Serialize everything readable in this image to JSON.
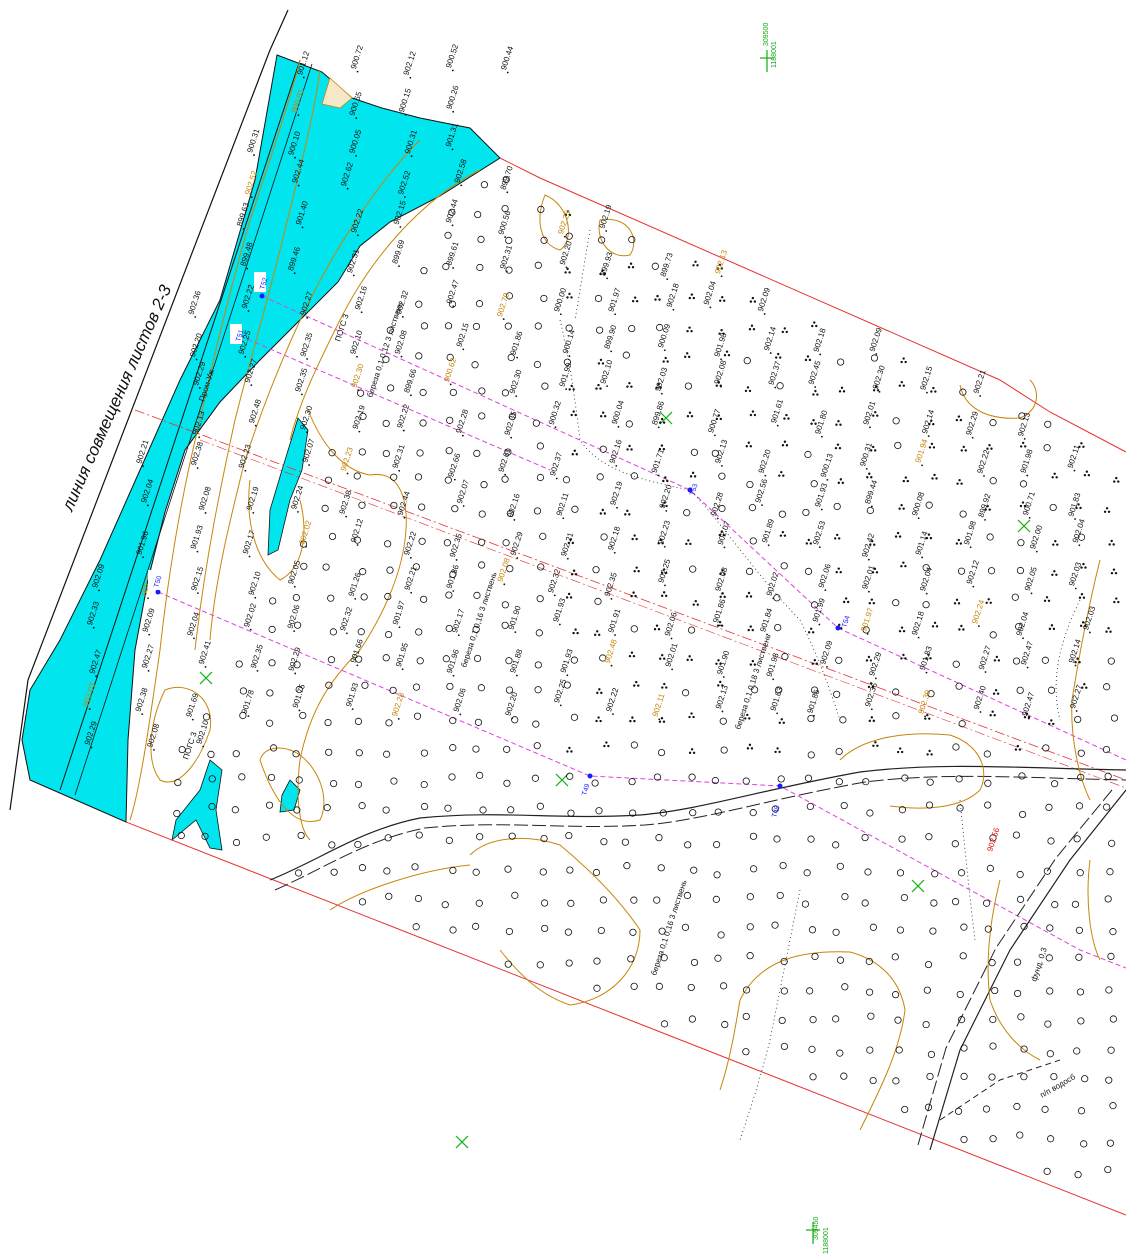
{
  "sheet_label": "линия совмещения листов 2-3",
  "grid_marks": [
    {
      "label": "1188001",
      "sub": "309500"
    },
    {
      "label": "1188001",
      "sub": "309450"
    }
  ],
  "stations": [
    "T52",
    "T51",
    "T50",
    "T53",
    "T54",
    "T49",
    "T48"
  ],
  "stream_label": "Пром-Уж",
  "red_label": "902.56",
  "road_notes": [
    "фунд. 0,3",
    "п/п водосб"
  ],
  "vegetation_notes": [
    "береза 0,1 0,12 3 листвень",
    "береза 0,1 0,16 3 листвень",
    "береза 0,1 0,18 3 листвень"
  ],
  "bench_note": "ПОГС 3",
  "colors": {
    "water": "#00e5ee",
    "boundary": "#e83030",
    "contour": "#c8860a",
    "profile": "#e040e0",
    "grid": "#10b010",
    "station": "#1a1aff",
    "road": "#222222"
  },
  "elevations": [
    "901.12",
    "900.72",
    "902.12",
    "900.52",
    "900.44",
    "900.91",
    "900.65",
    "900.15",
    "900.26",
    "900.31",
    "900.10",
    "900.05",
    "900.31",
    "901.31",
    "902.52",
    "902.44",
    "902.62",
    "902.52",
    "902.58",
    "899.70",
    "899.63",
    "901.40",
    "902.22",
    "902.15",
    "902.44",
    "900.56",
    "902.25",
    "902.19",
    "899.48",
    "899.46",
    "902.31",
    "899.69",
    "899.61",
    "902.31",
    "902.20",
    "899.93",
    "899.73",
    "902.13",
    "902.36",
    "902.22",
    "902.27",
    "902.16",
    "902.32",
    "902.47",
    "902.70",
    "900.00",
    "901.97",
    "902.18",
    "902.04",
    "902.09",
    "902.20",
    "902.25",
    "902.35",
    "902.10",
    "902.08",
    "902.15",
    "901.86",
    "900.14",
    "899.90",
    "900.09",
    "901.98",
    "902.14",
    "902.18",
    "902.09",
    "902.29",
    "902.27",
    "902.35",
    "902.30",
    "899.66",
    "900.62",
    "902.30",
    "901.99",
    "902.10",
    "902.03",
    "902.08",
    "902.37",
    "902.45",
    "902.30",
    "902.15",
    "902.21",
    "902.13",
    "902.48",
    "902.30",
    "902.19",
    "902.22",
    "902.28",
    "902.35",
    "900.32",
    "900.04",
    "899.86",
    "900.77",
    "901.61",
    "901.80",
    "902.01",
    "902.14",
    "902.29",
    "902.13",
    "902.21",
    "902.38",
    "902.23",
    "902.07",
    "902.23",
    "902.31",
    "902.66",
    "902.61",
    "902.37",
    "902.16",
    "901.71",
    "902.13",
    "902.20",
    "900.13",
    "900.31",
    "901.94",
    "902.22",
    "901.98",
    "902.11",
    "902.04",
    "902.08",
    "902.19",
    "902.24",
    "902.38",
    "902.44",
    "902.07",
    "902.16",
    "902.11",
    "902.19",
    "902.20",
    "902.28",
    "902.56",
    "901.93",
    "899.44",
    "900.08",
    "899.92",
    "900.71",
    "901.83",
    "901.96",
    "901.93",
    "902.17",
    "902.02",
    "902.12",
    "902.22",
    "902.35",
    "902.29",
    "902.21",
    "902.18",
    "902.23",
    "902.07",
    "901.89",
    "902.53",
    "902.42",
    "901.14",
    "901.98",
    "902.00",
    "902.04",
    "902.09",
    "902.01",
    "902.15",
    "902.10",
    "902.05",
    "901.26",
    "902.21",
    "901.86",
    "902.08",
    "902.32",
    "902.35",
    "902.25",
    "902.08",
    "902.02",
    "902.06",
    "902.01",
    "902.04",
    "902.12",
    "902.05",
    "902.03",
    "902.33",
    "902.09",
    "902.04",
    "902.02",
    "902.06",
    "902.32",
    "901.97",
    "902.17",
    "901.90",
    "901.93",
    "901.91",
    "902.06",
    "901.86",
    "901.84",
    "901.99",
    "901.97",
    "902.18",
    "902.24",
    "902.04",
    "902.03",
    "902.47",
    "902.27",
    "902.41",
    "902.35",
    "902.29",
    "901.66",
    "901.95",
    "901.96",
    "901.88",
    "901.93",
    "902.48",
    "902.01",
    "901.90",
    "901.98",
    "902.09",
    "902.29",
    "901.83",
    "902.27",
    "902.47",
    "902.14",
    "902.03",
    "902.38",
    "901.69",
    "901.78",
    "901.75",
    "901.93",
    "902.28",
    "902.06",
    "902.20",
    "902.25",
    "902.22",
    "902.11",
    "902.13",
    "901.63",
    "901.86",
    "902.36",
    "902.39",
    "902.40",
    "902.47",
    "902.27",
    "902.29",
    "902.08",
    "902.10"
  ]
}
